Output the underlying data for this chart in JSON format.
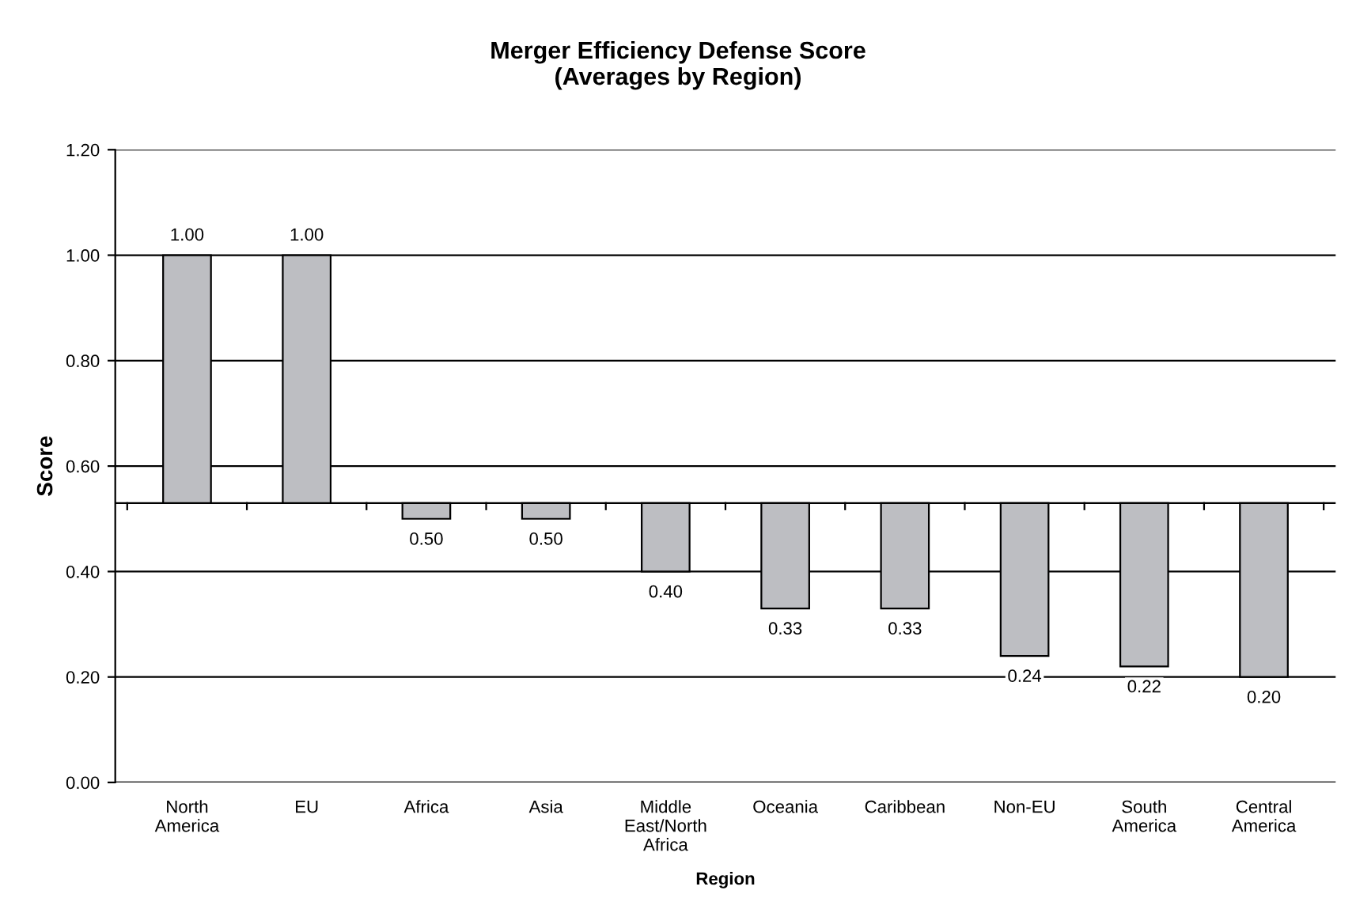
{
  "chart_data": {
    "type": "bar",
    "title": "Merger Efficiency Defense Score\n(Averages by Region)",
    "xlabel": "Region",
    "ylabel": "Score",
    "categories": [
      "North\nAmerica",
      "EU",
      "Africa",
      "Asia",
      "Middle\nEast/North\nAfrica",
      "Oceania",
      "Caribbean",
      "Non-EU",
      "South\nAmerica",
      "Central\nAmerica"
    ],
    "base": [
      0.53,
      0.53,
      0.53,
      0.53,
      0.53,
      0.53,
      0.53,
      0.53,
      0.53,
      0.53
    ],
    "values": [
      0.47,
      0.47,
      -0.03,
      -0.03,
      -0.13,
      -0.2,
      -0.2,
      -0.29,
      -0.31,
      -0.33
    ],
    "value_labels": [
      "1.00",
      "1.00",
      "0.50",
      "0.50",
      "0.40",
      "0.33",
      "0.33",
      "0.24",
      "0.22",
      "0.20"
    ],
    "color": "#bdbec2",
    "ylim": [
      0,
      1.2
    ],
    "yticks": [
      {
        "value": 0,
        "label": "0.00"
      },
      {
        "value": 0.2,
        "label": "0.20"
      },
      {
        "value": 0.4,
        "label": "0.40"
      },
      {
        "value": 0.6,
        "label": "0.60"
      },
      {
        "value": 0.8,
        "label": "0.80"
      },
      {
        "value": 1.0,
        "label": "1.00"
      },
      {
        "value": 1.2,
        "label": "1.20"
      }
    ],
    "grid": "y",
    "legend": false
  }
}
